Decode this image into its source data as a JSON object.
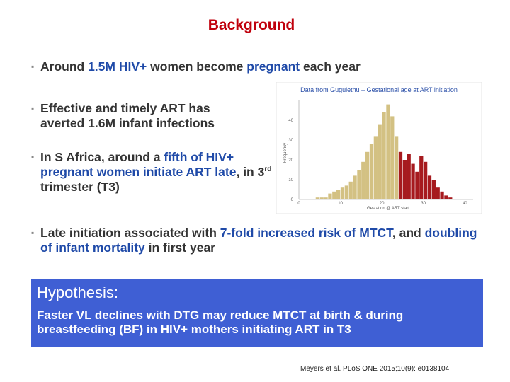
{
  "slide": {
    "title": "Background",
    "bullets": [
      {
        "parts": [
          "Around ",
          "1.5M HIV+",
          " women become ",
          "pregnant",
          " each year"
        ]
      },
      {
        "parts": [
          "Effective and timely ART has averted 1.6M infant infections"
        ]
      },
      {
        "parts": [
          "In S Africa, around a ",
          "fifth of HIV+ pregnant women initiate ART late",
          ", in 3",
          "rd",
          " trimester (T3)"
        ]
      },
      {
        "parts": [
          "Late initiation associated with ",
          "7-fold increased risk of MTCT",
          ", and ",
          "doubling of infant mortality",
          " in first year"
        ]
      }
    ],
    "hypothesis": {
      "heading": "Hypothesis:",
      "text": "Faster VL declines with DTG may reduce MTCT at birth & during breastfeeding (BF) in HIV+ mothers initiating ART in T3"
    },
    "citation": "Meyers et al. PLoS ONE 2015;10(9): e0138104",
    "colors": {
      "title": "#c0000c",
      "highlight": "#1f4aa8",
      "box": "#3f5fd4",
      "bar_early": "#d3c183",
      "bar_late": "#a61a1e"
    }
  },
  "chart_data": {
    "type": "bar",
    "title": "Data from Gugulethu – Gestational age at ART initiation",
    "xlabel": "Gestation @ ART start",
    "ylabel": "Frequency",
    "xlim": [
      0,
      42
    ],
    "ylim": [
      0,
      50
    ],
    "xticks": [
      "0",
      "10",
      "20",
      "30",
      "40"
    ],
    "yticks": [
      "0",
      "10",
      "20",
      "30",
      "40"
    ],
    "bin_start": 4,
    "bin_width": 1,
    "values": [
      1,
      1,
      1,
      3,
      4,
      5,
      6,
      7,
      9,
      12,
      15,
      19,
      24,
      28,
      32,
      38,
      44,
      48,
      42,
      32,
      24,
      20,
      23,
      18,
      14,
      22,
      19,
      12,
      10,
      6,
      4,
      2,
      1
    ],
    "t3_from_bin": 24
  }
}
